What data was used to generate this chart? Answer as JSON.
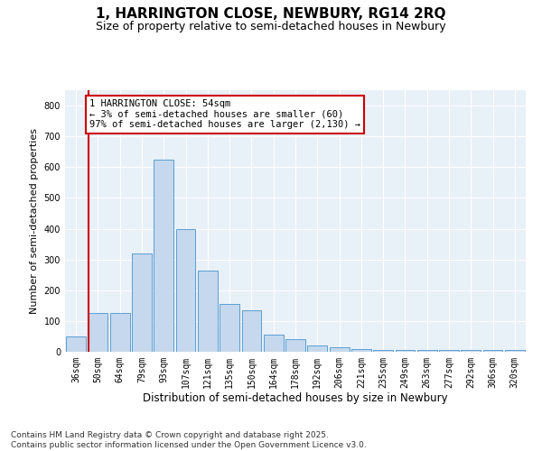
{
  "title": "1, HARRINGTON CLOSE, NEWBURY, RG14 2RQ",
  "subtitle": "Size of property relative to semi-detached houses in Newbury",
  "xlabel": "Distribution of semi-detached houses by size in Newbury",
  "ylabel": "Number of semi-detached properties",
  "categories": [
    "36sqm",
    "50sqm",
    "64sqm",
    "79sqm",
    "93sqm",
    "107sqm",
    "121sqm",
    "135sqm",
    "150sqm",
    "164sqm",
    "178sqm",
    "192sqm",
    "206sqm",
    "221sqm",
    "235sqm",
    "249sqm",
    "263sqm",
    "277sqm",
    "292sqm",
    "306sqm",
    "320sqm"
  ],
  "values": [
    50,
    125,
    125,
    320,
    625,
    400,
    265,
    155,
    135,
    55,
    40,
    20,
    15,
    10,
    5,
    5,
    5,
    5,
    5,
    5,
    5
  ],
  "bar_color": "#c5d8ed",
  "bar_edge_color": "#5a9fd4",
  "vline_x_index": 0.55,
  "vline_color": "#cc0000",
  "annotation_text": "1 HARRINGTON CLOSE: 54sqm\n← 3% of semi-detached houses are smaller (60)\n97% of semi-detached houses are larger (2,130) →",
  "annotation_box_color": "#cc0000",
  "ylim": [
    0,
    850
  ],
  "yticks": [
    0,
    100,
    200,
    300,
    400,
    500,
    600,
    700,
    800
  ],
  "background_color": "#e8f0f8",
  "grid_color": "#ffffff",
  "footer": "Contains HM Land Registry data © Crown copyright and database right 2025.\nContains public sector information licensed under the Open Government Licence v3.0.",
  "title_fontsize": 11,
  "subtitle_fontsize": 9,
  "xlabel_fontsize": 8.5,
  "ylabel_fontsize": 8,
  "tick_fontsize": 7,
  "annotation_fontsize": 7.5,
  "footer_fontsize": 6.5
}
